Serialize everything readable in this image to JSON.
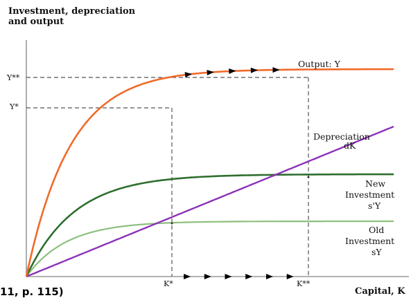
{
  "chart_data": {
    "type": "line",
    "ylabel": [
      "Investment, depreciation",
      "and output"
    ],
    "xlabel": "Capital, K",
    "citation": "11, p. 115)",
    "x_ticks": [
      "K*",
      "K**"
    ],
    "y_ticks": [
      "Y**",
      "Y*"
    ],
    "k_star": 0.38,
    "k_star_star": 0.75,
    "series": [
      {
        "name": "Output: Y",
        "color": "#f06a2a"
      },
      {
        "name": [
          "Depreciation",
          "dK"
        ],
        "color": "#8b30b8"
      },
      {
        "name": [
          "New",
          "Investment",
          "s'Y"
        ],
        "color": "#2e6e2e"
      },
      {
        "name": [
          "Old",
          "Investment",
          "sY"
        ],
        "color": "#8cbf7e"
      }
    ],
    "grid": false,
    "notes": "Arrows along the output curve and the capital axis show capital rising from K* to K** and output from Y* to Y**"
  }
}
